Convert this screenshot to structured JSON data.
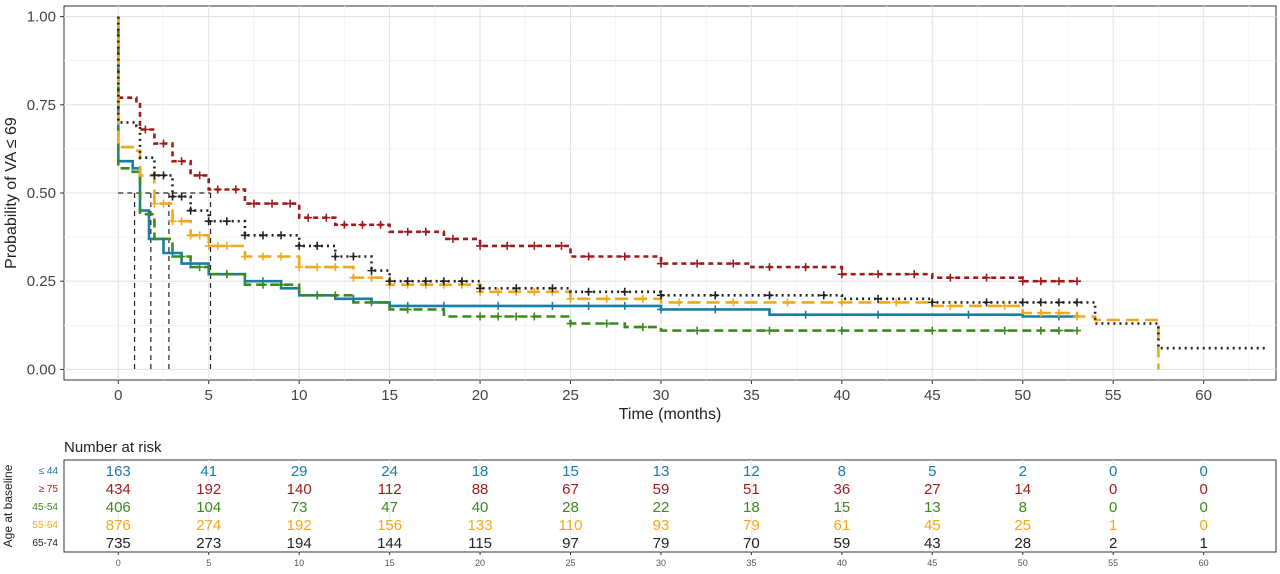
{
  "chart_data": {
    "type": "line",
    "title": "",
    "xlabel": "Time (months)",
    "ylabel": "Probability of VA ≤ 69",
    "xlim": [
      -3,
      64
    ],
    "ylim": [
      -0.03,
      1.03
    ],
    "x_ticks": [
      0,
      5,
      10,
      15,
      20,
      25,
      30,
      35,
      40,
      45,
      50,
      55,
      60
    ],
    "y_ticks": [
      0,
      0.25,
      0.5,
      0.75,
      1.0
    ],
    "y_tick_labels": [
      "0.00",
      "0.25",
      "0.50",
      "0.75",
      "1.00"
    ],
    "grid": true,
    "median_lines": {
      "y": 0.5,
      "x": [
        0.9,
        1.8,
        2.8,
        5.1
      ]
    },
    "series": [
      {
        "group": "≤ 44",
        "color": "#1a7da6",
        "dash": "solid",
        "points": [
          [
            0,
            1
          ],
          [
            0,
            0.59
          ],
          [
            0.8,
            0.57
          ],
          [
            1.2,
            0.45
          ],
          [
            1.7,
            0.37
          ],
          [
            2.5,
            0.33
          ],
          [
            3.5,
            0.3
          ],
          [
            5,
            0.27
          ],
          [
            7,
            0.25
          ],
          [
            9,
            0.23
          ],
          [
            10,
            0.21
          ],
          [
            12,
            0.2
          ],
          [
            14,
            0.19
          ],
          [
            15,
            0.18
          ],
          [
            20,
            0.18
          ],
          [
            25,
            0.18
          ],
          [
            30,
            0.17
          ],
          [
            36,
            0.155
          ],
          [
            45,
            0.155
          ],
          [
            50,
            0.15
          ],
          [
            53,
            0.15
          ]
        ],
        "censor_x": [
          3,
          4,
          6,
          8,
          11,
          13,
          16,
          18,
          21,
          24,
          26,
          28,
          30,
          33,
          38,
          42,
          47,
          52
        ]
      },
      {
        "group": "≥ 75",
        "color": "#9e1b1b",
        "dash": "5,4",
        "points": [
          [
            0,
            1
          ],
          [
            0,
            0.77
          ],
          [
            1,
            0.76
          ],
          [
            1.2,
            0.68
          ],
          [
            2,
            0.64
          ],
          [
            3,
            0.59
          ],
          [
            4,
            0.55
          ],
          [
            5,
            0.51
          ],
          [
            7,
            0.47
          ],
          [
            10,
            0.43
          ],
          [
            12,
            0.41
          ],
          [
            15,
            0.39
          ],
          [
            18,
            0.37
          ],
          [
            20,
            0.35
          ],
          [
            25,
            0.32
          ],
          [
            30,
            0.3
          ],
          [
            35,
            0.29
          ],
          [
            40,
            0.27
          ],
          [
            45,
            0.26
          ],
          [
            50,
            0.25
          ],
          [
            53,
            0.25
          ]
        ],
        "censor_x": [
          1.5,
          2.5,
          3.5,
          4.5,
          5.5,
          6.5,
          7.5,
          8.5,
          9.5,
          10.5,
          11.5,
          12.5,
          13.5,
          14.5,
          16,
          17,
          18.5,
          20,
          21.5,
          23,
          24.5,
          26,
          28,
          30,
          32,
          34,
          36,
          38,
          40,
          42,
          44,
          46,
          48,
          50,
          51,
          52,
          53
        ]
      },
      {
        "group": "45-54",
        "color": "#3c8a1d",
        "dash": "9,5",
        "points": [
          [
            0,
            1
          ],
          [
            0,
            0.57
          ],
          [
            0.8,
            0.56
          ],
          [
            1.2,
            0.44
          ],
          [
            2,
            0.37
          ],
          [
            3,
            0.32
          ],
          [
            4,
            0.29
          ],
          [
            5,
            0.27
          ],
          [
            7,
            0.24
          ],
          [
            10,
            0.21
          ],
          [
            13,
            0.19
          ],
          [
            15,
            0.17
          ],
          [
            18,
            0.15
          ],
          [
            22,
            0.15
          ],
          [
            25,
            0.13
          ],
          [
            28,
            0.12
          ],
          [
            30,
            0.11
          ],
          [
            40,
            0.11
          ],
          [
            53,
            0.11
          ]
        ],
        "censor_x": [
          3.5,
          4.5,
          6,
          8,
          9,
          11,
          12,
          14,
          16,
          20,
          21,
          22,
          23,
          25,
          27,
          29,
          32,
          36,
          40,
          45,
          49,
          51,
          52,
          53
        ]
      },
      {
        "group": "55-64",
        "color": "#f2a81d",
        "dash": "13,6",
        "points": [
          [
            0,
            1
          ],
          [
            0,
            0.63
          ],
          [
            0.8,
            0.62
          ],
          [
            1.2,
            0.55
          ],
          [
            2,
            0.47
          ],
          [
            3,
            0.42
          ],
          [
            4,
            0.38
          ],
          [
            5,
            0.35
          ],
          [
            7,
            0.32
          ],
          [
            10,
            0.29
          ],
          [
            13,
            0.26
          ],
          [
            15,
            0.24
          ],
          [
            20,
            0.22
          ],
          [
            25,
            0.2
          ],
          [
            30,
            0.19
          ],
          [
            40,
            0.19
          ],
          [
            45,
            0.18
          ],
          [
            50,
            0.16
          ],
          [
            53,
            0.15
          ],
          [
            54,
            0.14
          ],
          [
            57.5,
            0.14
          ],
          [
            57.5,
            0
          ]
        ],
        "censor_x": [
          2,
          2.5,
          3,
          3.5,
          4,
          4.5,
          5,
          5.5,
          6,
          7,
          8,
          9,
          10,
          11,
          12,
          13,
          14,
          15,
          16,
          17,
          18,
          19,
          20,
          21,
          22,
          23,
          24,
          25,
          27,
          29,
          31,
          34,
          37,
          40,
          43,
          46,
          49,
          51,
          52,
          53
        ]
      },
      {
        "group": "65-74",
        "color": "#222222",
        "dash": "2,4",
        "points": [
          [
            0,
            1
          ],
          [
            0,
            0.7
          ],
          [
            1,
            0.69
          ],
          [
            1.2,
            0.6
          ],
          [
            2,
            0.55
          ],
          [
            3,
            0.49
          ],
          [
            4,
            0.45
          ],
          [
            5,
            0.42
          ],
          [
            7,
            0.38
          ],
          [
            10,
            0.35
          ],
          [
            12,
            0.32
          ],
          [
            14,
            0.28
          ],
          [
            15,
            0.25
          ],
          [
            20,
            0.23
          ],
          [
            25,
            0.22
          ],
          [
            30,
            0.21
          ],
          [
            40,
            0.2
          ],
          [
            45,
            0.19
          ],
          [
            50,
            0.19
          ],
          [
            54,
            0.18
          ],
          [
            54,
            0.13
          ],
          [
            57.5,
            0.13
          ],
          [
            57.5,
            0.06
          ],
          [
            63.5,
            0.06
          ]
        ],
        "censor_x": [
          2,
          2.5,
          3,
          3.5,
          4,
          5,
          6,
          7,
          8,
          9,
          10,
          11,
          12,
          13,
          14,
          15,
          16,
          17,
          18,
          19,
          20,
          22,
          24,
          26,
          28,
          30,
          33,
          36,
          39,
          42,
          45,
          48,
          50,
          51,
          52,
          53
        ]
      }
    ]
  },
  "risk_table": {
    "title": "Number at risk",
    "y_axis_title": "Age at baseline",
    "times": [
      "0",
      "5",
      "10",
      "15",
      "20",
      "25",
      "30",
      "35",
      "40",
      "45",
      "50",
      "55",
      "60"
    ],
    "rows": [
      {
        "group": "≤ 44",
        "color": "#1a7da6",
        "counts": [
          "163",
          "41",
          "29",
          "24",
          "18",
          "15",
          "13",
          "12",
          "8",
          "5",
          "2",
          "0",
          "0"
        ]
      },
      {
        "group": "≥ 75",
        "color": "#9e1b1b",
        "counts": [
          "434",
          "192",
          "140",
          "112",
          "88",
          "67",
          "59",
          "51",
          "36",
          "27",
          "14",
          "0",
          "0"
        ]
      },
      {
        "group": "45-54",
        "color": "#3c8a1d",
        "counts": [
          "406",
          "104",
          "73",
          "47",
          "40",
          "28",
          "22",
          "18",
          "15",
          "13",
          "8",
          "0",
          "0"
        ]
      },
      {
        "group": "55-64",
        "color": "#f2a81d",
        "counts": [
          "876",
          "274",
          "192",
          "156",
          "133",
          "110",
          "93",
          "79",
          "61",
          "45",
          "25",
          "1",
          "0"
        ]
      },
      {
        "group": "65-74",
        "color": "#222222",
        "counts": [
          "735",
          "273",
          "194",
          "144",
          "115",
          "97",
          "79",
          "70",
          "59",
          "43",
          "28",
          "2",
          "1"
        ]
      }
    ]
  }
}
